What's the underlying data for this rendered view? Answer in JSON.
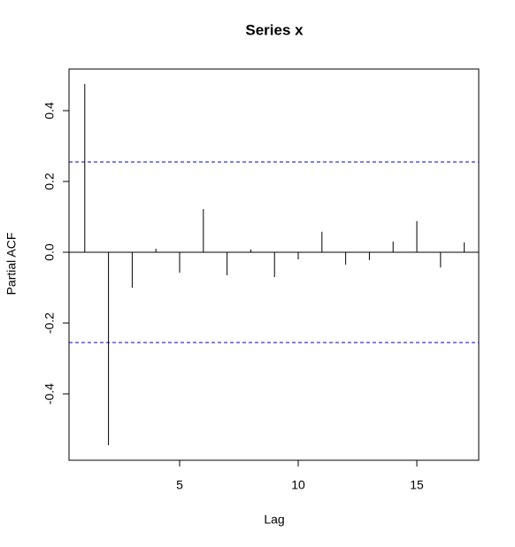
{
  "chart_data": {
    "type": "bar",
    "title": "Series  x",
    "xlabel": "Lag",
    "ylabel": "Partial ACF",
    "x": [
      1,
      2,
      3,
      4,
      5,
      6,
      7,
      8,
      9,
      10,
      11,
      12,
      13,
      14,
      15,
      16,
      17
    ],
    "values": [
      0.475,
      -0.545,
      -0.1,
      0.01,
      -0.058,
      0.122,
      -0.065,
      0.008,
      -0.07,
      -0.02,
      0.058,
      -0.035,
      -0.022,
      0.03,
      0.088,
      -0.043,
      0.028
    ],
    "color": "#000000",
    "hlines": [
      0.255,
      -0.255
    ],
    "hline_color": "#0000cc",
    "xlim": [
      0.336,
      17.61
    ],
    "xticks": [
      5,
      10,
      15
    ],
    "ylim": [
      -0.5875,
      0.5175
    ],
    "yticks": [
      -0.4,
      -0.2,
      {
        "value": 0,
        "label": "0.0"
      },
      0.2,
      0.4
    ]
  }
}
